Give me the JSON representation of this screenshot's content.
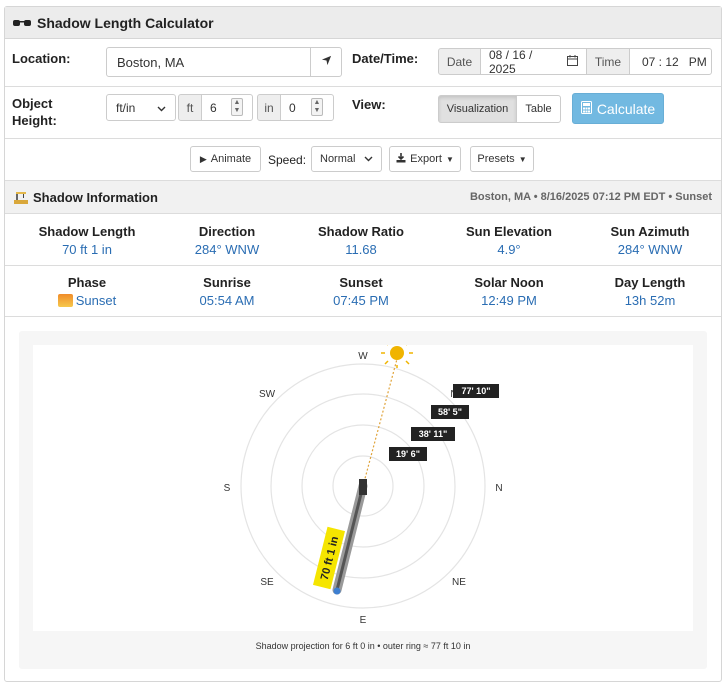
{
  "app": {
    "title": "Shadow Length Calculator"
  },
  "location": {
    "label": "Location:",
    "value": "Boston, MA"
  },
  "datetime": {
    "label": "Date/Time:",
    "date_label": "Date",
    "date_value": "08 / 16 / 2025",
    "time_label": "Time",
    "time_value": "07 : 12   PM"
  },
  "object_height": {
    "label_line1": "Object",
    "label_line2": "Height:",
    "unit_select": "ft/in",
    "ft_label": "ft",
    "ft_value": "6",
    "in_label": "in",
    "in_value": "0"
  },
  "view": {
    "label": "View:",
    "visualization": "Visualization",
    "table": "Table"
  },
  "calculate_label": "Calculate",
  "toolbar": {
    "animate": "Animate",
    "speed_label": "Speed:",
    "speed_value": "Normal",
    "export": "Export",
    "presets": "Presets"
  },
  "info": {
    "title": "Shadow Information",
    "summary": "Boston, MA • 8/16/2025 07:12 PM EDT • Sunset"
  },
  "stats_row1": [
    {
      "title": "Shadow Length",
      "value": "70 ft 1 in"
    },
    {
      "title": "Direction",
      "value": "284° WNW"
    },
    {
      "title": "Shadow Ratio",
      "value": "11.68"
    },
    {
      "title": "Sun Elevation",
      "value": "4.9°"
    },
    {
      "title": "Sun Azimuth",
      "value": "284° WNW"
    }
  ],
  "stats_row2": [
    {
      "title": "Phase",
      "value": "Sunset"
    },
    {
      "title": "Sunrise",
      "value": "05:54 AM"
    },
    {
      "title": "Sunset",
      "value": "07:45 PM"
    },
    {
      "title": "Solar Noon",
      "value": "12:49 PM"
    },
    {
      "title": "Day Length",
      "value": "13h 52m"
    }
  ],
  "visualization": {
    "compass": {
      "W": "W",
      "SW": "SW",
      "S": "S",
      "SE": "SE",
      "E": "E",
      "NE": "NE",
      "N": "N",
      "NW": "N"
    },
    "ring_labels": [
      "19' 6\"",
      "38' 11\"",
      "58' 5\"",
      "77' 10\""
    ],
    "shadow_label": "70 ft 1 in",
    "caption": "Shadow projection for 6 ft 0 in • outer ring ≈ 77 ft 10 in",
    "colors": {
      "sun": "#f0b400",
      "shadow_label_bg": "#f5e500",
      "ring": "#e2e2e2",
      "dot": "#3d7fd1"
    }
  }
}
